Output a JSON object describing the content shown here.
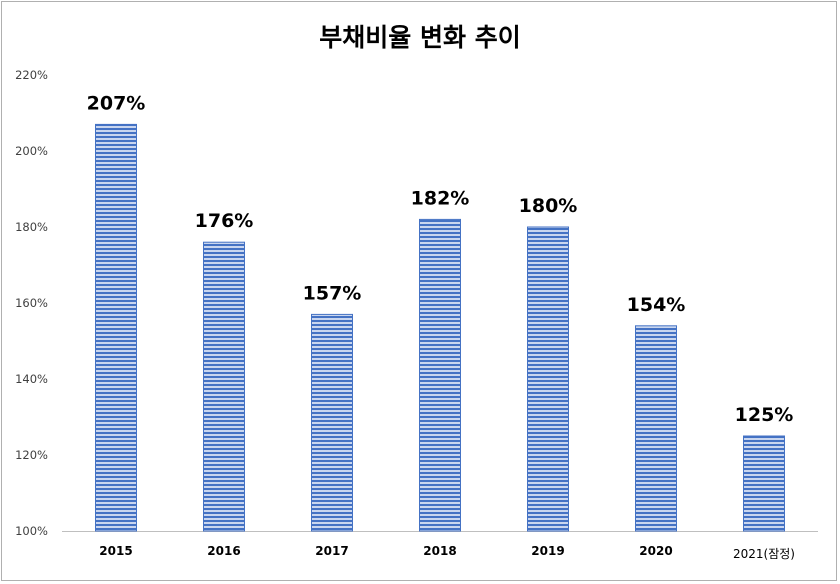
{
  "chart_data": {
    "type": "bar",
    "title": "부채비율 변화 추이",
    "xlabel": "",
    "ylabel": "",
    "categories": [
      "2015",
      "2016",
      "2017",
      "2018",
      "2019",
      "2020",
      "2021(잠정)"
    ],
    "values": [
      207,
      176,
      157,
      182,
      180,
      154,
      125
    ],
    "value_labels": [
      "207%",
      "176%",
      "157%",
      "182%",
      "180%",
      "154%",
      "125%"
    ],
    "ylim": [
      100,
      220
    ],
    "yticks": [
      100,
      120,
      140,
      160,
      180,
      200,
      220
    ],
    "ytick_labels": [
      "100%",
      "120%",
      "140%",
      "160%",
      "180%",
      "200%",
      "220%"
    ],
    "grid": false,
    "legend": "none",
    "colors": {
      "bar_fill": "#4472c4",
      "bar_stripe": "#c9d6ef",
      "axis": "#bfbfbf",
      "text": "#000000"
    }
  }
}
